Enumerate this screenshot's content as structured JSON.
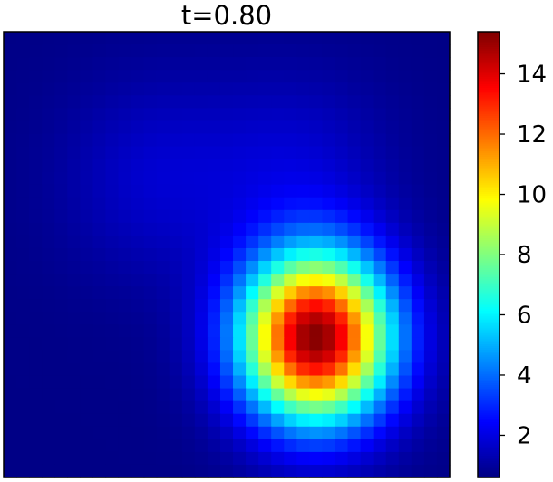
{
  "chart_data": {
    "type": "heatmap",
    "title": "t=0.80",
    "grid": false,
    "axes_ticks": "hidden",
    "colormap": "jet",
    "colorbar": {
      "placement": "right",
      "vmin": 0.6,
      "vmax": 15.4,
      "ticks": [
        2,
        4,
        6,
        8,
        10,
        12,
        14
      ],
      "tick_labels": [
        "2",
        "4",
        "6",
        "8",
        "10",
        "12",
        "14"
      ]
    },
    "grid_size": [
      35,
      35
    ],
    "background_value": 0.7,
    "blobs": [
      {
        "label": "peak",
        "cx": 24.0,
        "cy": 23.5,
        "amplitude": 14.6,
        "sx": 4.1,
        "sy": 4.6
      },
      {
        "label": "left-lobe",
        "cx": 11.5,
        "cy": 11.0,
        "amplitude": 1.0,
        "sx": 5.2,
        "sy": 5.6
      },
      {
        "label": "right-lobe",
        "cx": 22.5,
        "cy": 10.0,
        "amplitude": 1.0,
        "sx": 5.0,
        "sy": 5.2
      }
    ]
  }
}
